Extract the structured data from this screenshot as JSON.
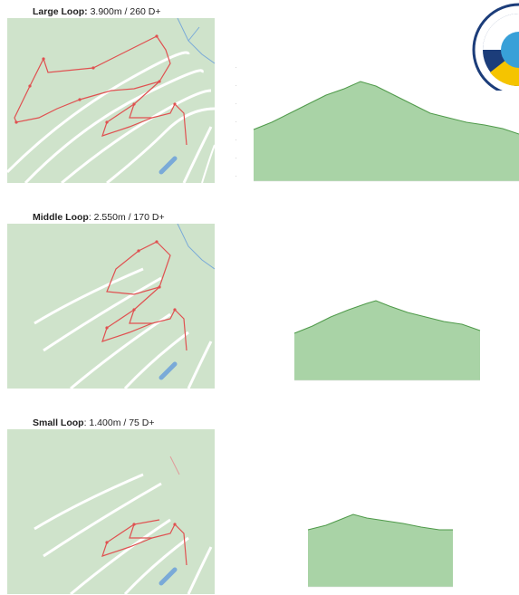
{
  "colors": {
    "map_bg": "#cfe3cb",
    "route": "#e05050",
    "road": "#ffffff",
    "profile_fill": "#a9d3a6",
    "profile_line": "#4f9a4a",
    "water": "#7aaad8"
  },
  "loops": [
    {
      "name": "Large Loop",
      "name_suffix": ":",
      "stats": " 3.900m / 260 D+",
      "name_bold_colon": true
    },
    {
      "name": "Middle Loop",
      "name_suffix": "",
      "stats": ": 2.550m / 170 D+",
      "name_bold_colon": false
    },
    {
      "name": "Small Loop",
      "name_suffix": "",
      "stats": ": 1.400m / 75 D+",
      "name_bold_colon": false
    }
  ],
  "badge": {
    "icon": "world-championship-logo-icon"
  }
}
